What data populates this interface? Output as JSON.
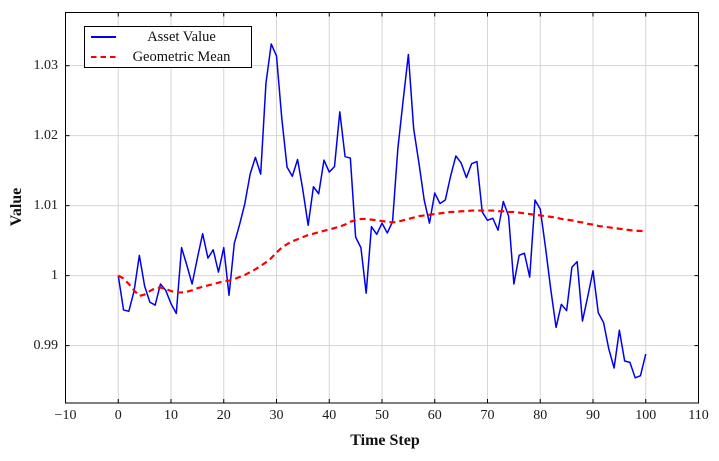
{
  "figure": {
    "xlabel": "Time Step",
    "ylabel": "Value"
  },
  "chart_data": {
    "type": "line",
    "title": "",
    "xlabel": "Time Step",
    "ylabel": "Value",
    "xlim": [
      -10,
      110
    ],
    "ylim": [
      0.9818,
      1.0376
    ],
    "grid": true,
    "grid_color": "#d6d6d6",
    "axis_color": "#000000",
    "legend_position": "top-left",
    "xticks": {
      "values": [
        -10,
        0,
        10,
        20,
        30,
        40,
        50,
        60,
        70,
        80,
        90,
        100,
        110
      ],
      "labels": [
        "−10",
        "0",
        "10",
        "20",
        "30",
        "40",
        "50",
        "60",
        "70",
        "80",
        "90",
        "100",
        "110"
      ]
    },
    "yticks": {
      "values": [
        0.99,
        1.0,
        1.01,
        1.02,
        1.03
      ],
      "labels": [
        "0.99",
        "1",
        "1.01",
        "1.02",
        "1.03"
      ]
    },
    "x": {
      "start": 0,
      "end": 100,
      "step": 1
    },
    "series": [
      {
        "name": "Asset Value",
        "color": "#0000ee",
        "line_style": "solid",
        "line_width": 1.5,
        "values": [
          1.0,
          0.9951,
          0.9949,
          0.9978,
          1.0029,
          0.9985,
          0.9962,
          0.9958,
          0.9988,
          0.9979,
          0.996,
          0.9946,
          1.004,
          1.0015,
          0.9988,
          1.0025,
          1.006,
          1.0025,
          1.0037,
          1.0005,
          1.004,
          0.9972,
          1.0046,
          1.0073,
          1.0103,
          1.0145,
          1.0169,
          1.0145,
          1.0275,
          1.0331,
          1.0314,
          1.0225,
          1.0155,
          1.0142,
          1.0166,
          1.0122,
          1.0072,
          1.0127,
          1.0117,
          1.0165,
          1.0148,
          1.0156,
          1.0234,
          1.017,
          1.0168,
          1.0055,
          1.004,
          0.9975,
          1.007,
          1.0059,
          1.0075,
          1.0061,
          1.0077,
          1.0181,
          1.025,
          1.0316,
          1.021,
          1.0161,
          1.0108,
          1.0075,
          1.0118,
          1.0103,
          1.0108,
          1.0142,
          1.0171,
          1.0161,
          1.014,
          1.016,
          1.0163,
          1.0091,
          1.0079,
          1.0082,
          1.0065,
          1.0106,
          1.0085,
          0.9988,
          1.0029,
          1.0032,
          0.9998,
          1.0108,
          1.0095,
          1.004,
          0.998,
          0.9926,
          0.9959,
          0.995,
          1.0012,
          1.002,
          0.9935,
          0.997,
          1.0007,
          0.9947,
          0.9933,
          0.9895,
          0.9868,
          0.9922,
          0.9878,
          0.9876,
          0.9854,
          0.9857,
          0.9888
        ]
      },
      {
        "name": "Geometric Mean",
        "color": "#ff0000",
        "line_style": "dashed",
        "line_width": 2.2,
        "values": [
          1.0,
          0.9996,
          0.9988,
          0.9979,
          0.9971,
          0.9973,
          0.9978,
          0.9982,
          0.9983,
          0.9981,
          0.9978,
          0.9976,
          0.9976,
          0.9977,
          0.9979,
          0.9982,
          0.9984,
          0.9986,
          0.9988,
          0.999,
          0.9992,
          0.9993,
          0.9995,
          0.9998,
          1.0001,
          1.0005,
          1.0009,
          1.0014,
          1.0019,
          1.0025,
          1.0033,
          1.004,
          1.0045,
          1.0049,
          1.0052,
          1.0055,
          1.0058,
          1.006,
          1.0062,
          1.0064,
          1.0066,
          1.0068,
          1.007,
          1.0073,
          1.0077,
          1.0079,
          1.0081,
          1.0081,
          1.008,
          1.0079,
          1.0078,
          1.0077,
          1.0076,
          1.0077,
          1.0079,
          1.0081,
          1.0083,
          1.0085,
          1.0086,
          1.0087,
          1.0088,
          1.0089,
          1.009,
          1.0091,
          1.0091,
          1.0092,
          1.0092,
          1.0093,
          1.0093,
          1.0093,
          1.0093,
          1.0093,
          1.0092,
          1.0092,
          1.0091,
          1.0091,
          1.009,
          1.0089,
          1.0088,
          1.0087,
          1.0086,
          1.0085,
          1.0084,
          1.0083,
          1.0081,
          1.008,
          1.0079,
          1.0077,
          1.0076,
          1.0074,
          1.0073,
          1.0071,
          1.007,
          1.0069,
          1.0068,
          1.0067,
          1.0066,
          1.0065,
          1.0064,
          1.0064,
          1.0063
        ]
      }
    ]
  }
}
